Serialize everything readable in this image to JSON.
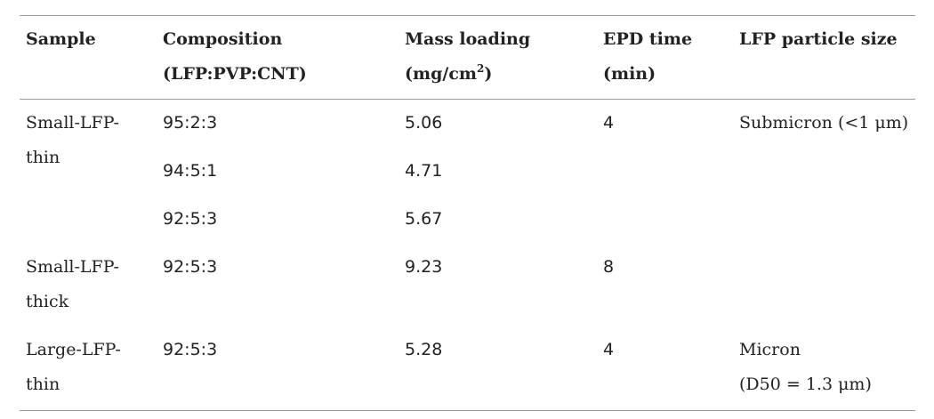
{
  "table": {
    "headers": {
      "sample": "Sample",
      "composition": [
        "Composition",
        "(LFP:PVP:CNT)"
      ],
      "mass_loading": [
        "Mass loading",
        "(mg/cm",
        "2",
        ")"
      ],
      "epd_time": [
        "EPD time",
        "(min)"
      ],
      "particle_size": "LFP particle size"
    },
    "groups": [
      {
        "sample": [
          "Small-LFP-",
          "thin"
        ],
        "particle_size": [
          "Submicron (<1 μm)"
        ],
        "epd_time": "4",
        "rows": [
          {
            "composition": "95:2:3",
            "mass_loading": "5.06"
          },
          {
            "composition": "94:5:1",
            "mass_loading": "4.71"
          },
          {
            "composition": "92:5:3",
            "mass_loading": "5.67"
          }
        ]
      },
      {
        "sample": [
          "Small-LFP-",
          "thick"
        ],
        "particle_size": [],
        "epd_time": "8",
        "rows": [
          {
            "composition": "92:5:3",
            "mass_loading": "9.23"
          }
        ]
      },
      {
        "sample": [
          "Large-LFP-",
          "thin"
        ],
        "particle_size": [
          "Micron",
          "(D50 = 1.3 μm)"
        ],
        "epd_time": "4",
        "rows": [
          {
            "composition": "92:5:3",
            "mass_loading": "5.28"
          }
        ]
      }
    ]
  }
}
